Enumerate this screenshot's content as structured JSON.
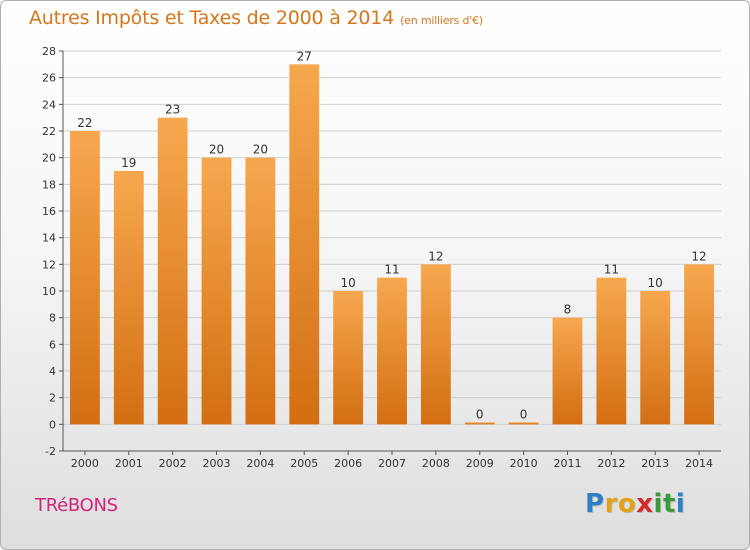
{
  "title": "Autres Impôts et Taxes de 2000 à 2014",
  "unit": "(en milliers d'€)",
  "commune": "TRéBONS",
  "logo": {
    "letters": [
      "P",
      "r",
      "o",
      "x",
      "i",
      "t",
      "i"
    ],
    "colors": [
      "#2f7fc6",
      "#e3a11a",
      "#e3a11a",
      "#d32a2a",
      "#3d9a3a",
      "#3d9a3a",
      "#2f7fc6"
    ]
  },
  "colors": {
    "bar_light": "#f7a84f",
    "bar_dark": "#d36e12",
    "title": "#d4761a",
    "commune": "#d4237a"
  },
  "chart_data": {
    "type": "bar",
    "categories": [
      "2000",
      "2001",
      "2002",
      "2003",
      "2004",
      "2005",
      "2006",
      "2007",
      "2008",
      "2009",
      "2010",
      "2011",
      "2012",
      "2013",
      "2014"
    ],
    "values": [
      22,
      19,
      23,
      20,
      20,
      27,
      10,
      11,
      12,
      0,
      0,
      8,
      11,
      10,
      12
    ],
    "data_labels": [
      "22",
      "19",
      "23",
      "20",
      "20",
      "27",
      "10",
      "11",
      "12",
      "0",
      "0",
      "8",
      "11",
      "10",
      "12"
    ],
    "ylim": [
      -2,
      28
    ],
    "yticks": [
      -2,
      0,
      2,
      4,
      6,
      8,
      10,
      12,
      14,
      16,
      18,
      20,
      22,
      24,
      26,
      28
    ],
    "grid": "horizontal"
  }
}
